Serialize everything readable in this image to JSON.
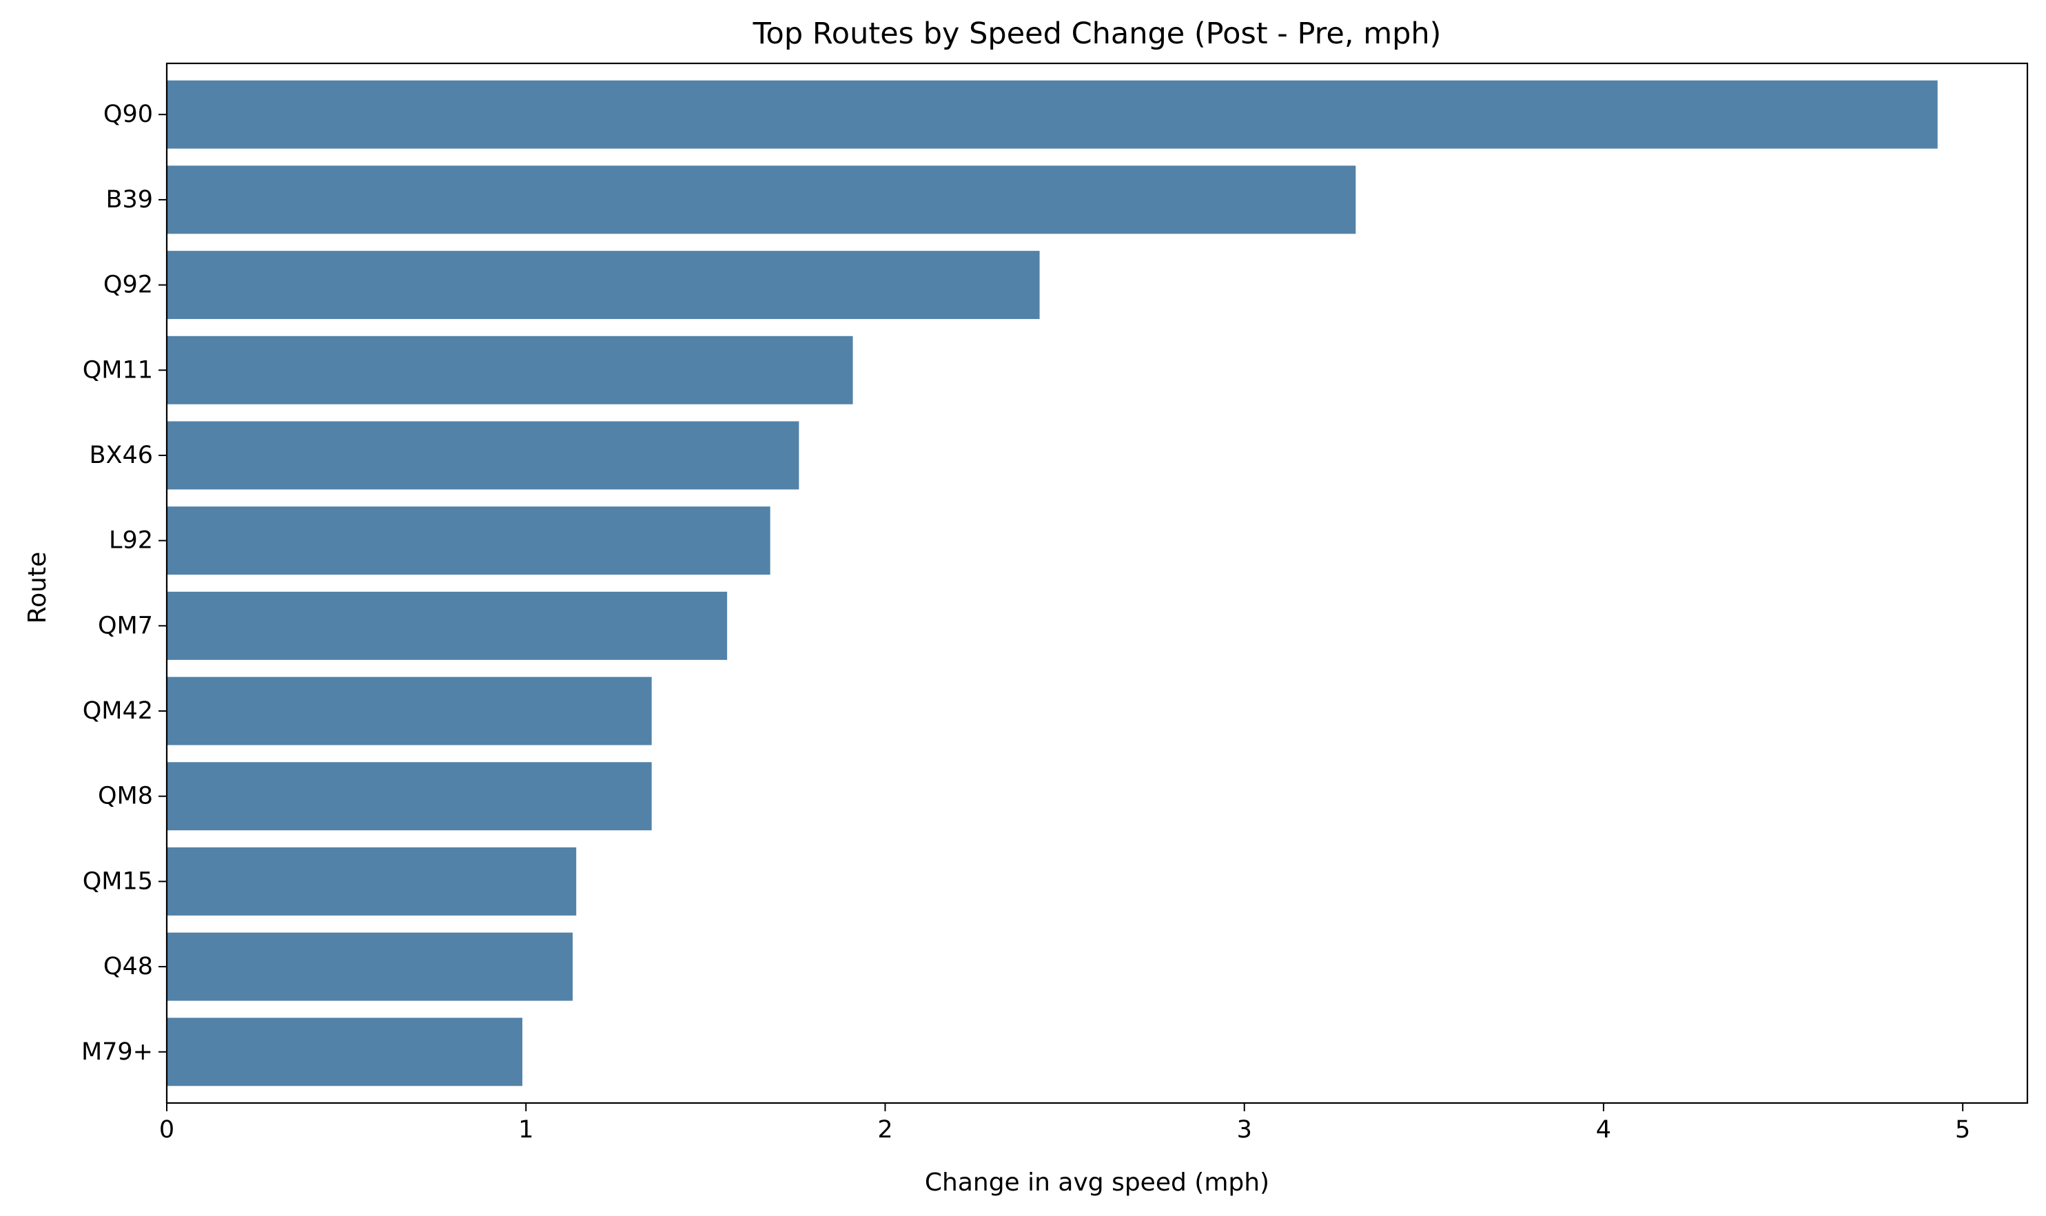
{
  "chart_data": {
    "type": "bar",
    "orientation": "horizontal",
    "title": "Top Routes by Speed Change (Post - Pre, mph)",
    "xlabel": "Change in avg speed (mph)",
    "ylabel": "Route",
    "categories": [
      "Q90",
      "B39",
      "Q92",
      "QM11",
      "BX46",
      "L92",
      "QM7",
      "QM42",
      "QM8",
      "QM15",
      "Q48",
      "M79+"
    ],
    "values": [
      4.93,
      3.31,
      2.43,
      1.91,
      1.76,
      1.68,
      1.56,
      1.35,
      1.35,
      1.14,
      1.13,
      0.99
    ],
    "xlim": [
      0,
      5.18
    ],
    "xticks": [
      0,
      1,
      2,
      3,
      4,
      5
    ],
    "grid": false,
    "bar_color": "#5282a8"
  }
}
